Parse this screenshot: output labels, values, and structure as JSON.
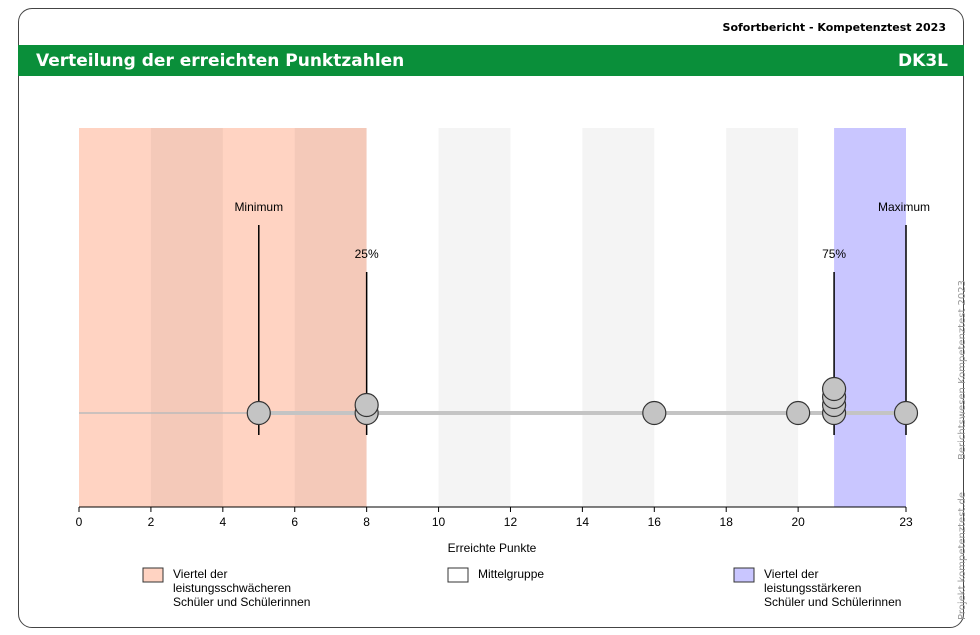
{
  "report": "Sofortbericht - Kompetenztest 2023",
  "heading": "Verteilung der erreichten Punktzahlen",
  "code": "DK3L",
  "side_texts": [
    "Projekt kompetenztest.de",
    "Berichtswesen Kompetenztest 2023"
  ],
  "chart_data": {
    "type": "dotplot",
    "xlabel": "Erreichte Punkte",
    "xlim": [
      0,
      23
    ],
    "xticks": [
      0,
      2,
      4,
      6,
      8,
      10,
      12,
      14,
      16,
      18,
      20,
      23
    ],
    "points": [
      5,
      8,
      8,
      16,
      20,
      21,
      21,
      21,
      21,
      23
    ],
    "point_color": "#c4c4c4",
    "markers": [
      {
        "label": "Minimum",
        "value": 5
      },
      {
        "label": "25%",
        "value": 8
      },
      {
        "label": "75%",
        "value": 21
      },
      {
        "label": "Maximum",
        "value": 23
      }
    ],
    "bands": [
      {
        "from": 0,
        "to": 8,
        "color": "#ffd3c2",
        "label": [
          "Viertel der",
          "leistungsschwächeren",
          "Schüler und Schülerinnen"
        ]
      },
      {
        "from": 8,
        "to": 21,
        "color": "#ffffff",
        "label": [
          "Mittelgruppe"
        ]
      },
      {
        "from": 21,
        "to": 23,
        "color": "#c9c6ff",
        "label": [
          "Viertel der",
          "leistungsstärkeren",
          "Schüler und Schülerinnen"
        ]
      }
    ]
  }
}
